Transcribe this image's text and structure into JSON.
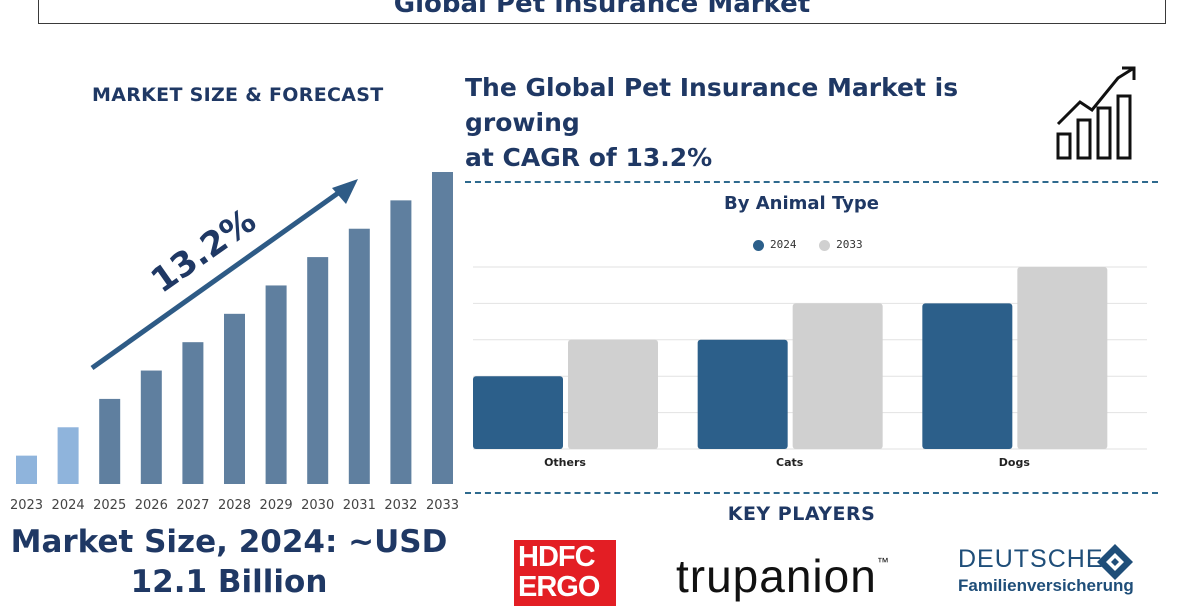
{
  "header": {
    "title": "Global Pet Insurance Market"
  },
  "left_panel": {
    "heading": "MARKET SIZE & FORECAST",
    "market_size_line1": "Market Size, 2024: ~USD",
    "market_size_line2": "12.1 Billion"
  },
  "right_panel": {
    "cagr_line1": "The Global Pet Insurance Market is growing",
    "cagr_line2": "at CAGR of 13.2%",
    "animal_chart_title": "By Animal Type",
    "key_players_title": "KEY PLAYERS",
    "players": {
      "hdfc_line1": "HDFC",
      "hdfc_line2": "ERGO",
      "trupanion": "trupanion",
      "trupanion_tm": "™",
      "deutsche_line1": "DEUTSCHE",
      "deutsche_line2": "Familienversicherung"
    }
  },
  "colors": {
    "navy_text": "#1f3864",
    "bar_dark": "#5f7f9f",
    "bar_light": "#8fb4dc",
    "arrow": "#2e5b86",
    "series_2024": "#2c5f8a",
    "series_2033": "#d0d0d0",
    "hdfc_red": "#e31e24"
  },
  "icons": [
    "growth-chart-icon",
    "diamond-logo-icon"
  ],
  "chart_data": [
    {
      "type": "bar",
      "categories": [
        "2023",
        "2024",
        "2025",
        "2026",
        "2027",
        "2028",
        "2029",
        "2030",
        "2031",
        "2032",
        "2033"
      ],
      "values": [
        1.0,
        2.0,
        3.0,
        4.0,
        5.0,
        6.0,
        7.0,
        8.0,
        9.0,
        10.0,
        11.0
      ],
      "highlighted_categories": [
        "2023",
        "2024"
      ],
      "annotation": "13.2%",
      "title": "",
      "xlabel": "",
      "ylabel": "",
      "ylim": [
        0,
        11
      ],
      "grid": false
    },
    {
      "type": "bar",
      "title": "By Animal Type",
      "categories": [
        "Others",
        "Cats",
        "Dogs"
      ],
      "series": [
        {
          "name": "2024",
          "values": [
            2,
            3,
            4
          ]
        },
        {
          "name": "2033",
          "values": [
            3,
            4,
            5
          ]
        }
      ],
      "ylim": [
        0,
        5
      ],
      "grid": true,
      "legend": "top-center"
    }
  ]
}
